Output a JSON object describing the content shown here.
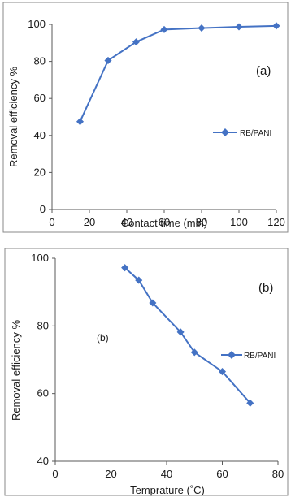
{
  "chart_data": [
    {
      "type": "line",
      "panel_label": "(a)",
      "xlabel": "Contact time (min)",
      "ylabel": "Removal efficiency %",
      "xlim": [
        0,
        120
      ],
      "ylim": [
        0,
        100
      ],
      "x_ticks": [
        "0",
        "20",
        "40",
        "60",
        "80",
        "100",
        "120"
      ],
      "y_ticks": [
        "0",
        "20",
        "40",
        "60",
        "80",
        "100"
      ],
      "legend_position": "right",
      "grid": false,
      "series": [
        {
          "name": "RB/PANI",
          "color": "#4472c4",
          "marker": "diamond",
          "x": [
            15,
            30,
            45,
            60,
            80,
            100,
            120
          ],
          "y": [
            47.5,
            80.5,
            90.5,
            97.2,
            98.0,
            98.7,
            99.2
          ]
        }
      ]
    },
    {
      "type": "line",
      "panel_label": "(b)",
      "inner_label": "(b)",
      "xlabel": "Temprature (˚C)",
      "ylabel": "Removal efficiency %",
      "xlim": [
        0,
        80
      ],
      "ylim": [
        40,
        100
      ],
      "x_ticks": [
        "0",
        "20",
        "40",
        "60",
        "80"
      ],
      "y_ticks": [
        "40",
        "60",
        "80",
        "100"
      ],
      "legend_position": "right",
      "grid": false,
      "series": [
        {
          "name": "RB/PANI",
          "color": "#4472c4",
          "marker": "diamond",
          "x": [
            25,
            30,
            35,
            45,
            50,
            60,
            70
          ],
          "y": [
            97.2,
            93.5,
            86.8,
            78.2,
            72.2,
            66.5,
            57.2
          ]
        }
      ]
    }
  ]
}
